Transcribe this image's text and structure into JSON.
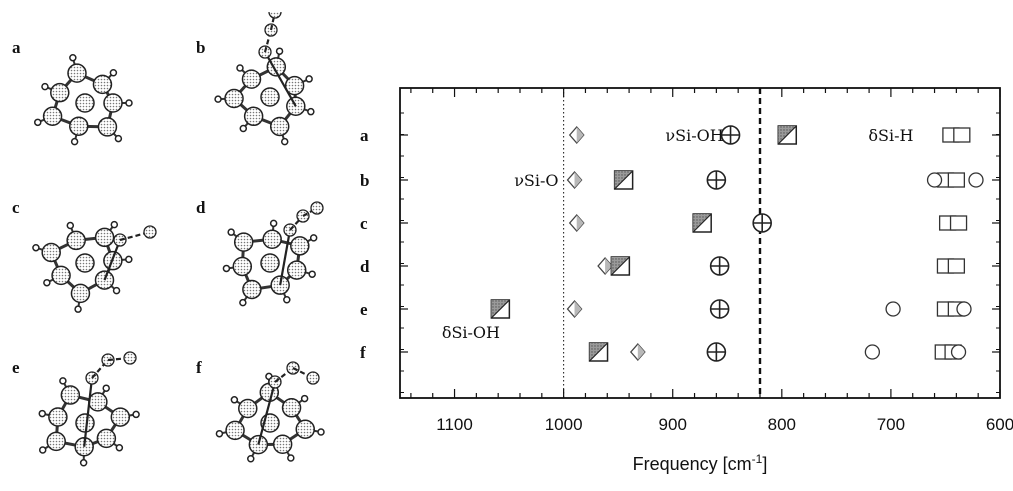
{
  "structures": {
    "labels": [
      "a",
      "b",
      "c",
      "d",
      "e",
      "f"
    ]
  },
  "chart_data": {
    "type": "scatter",
    "title": "",
    "xlabel": "Frequency [cm",
    "xlabel_superscript": "-1",
    "xlabel_suffix": "]",
    "ylabel": "",
    "xlim": [
      1150,
      600
    ],
    "x_reversed": true,
    "xticks": [
      1100,
      1000,
      900,
      800,
      700,
      600
    ],
    "categories": [
      "a",
      "b",
      "c",
      "d",
      "e",
      "f"
    ],
    "reference_lines": [
      {
        "x": 1000,
        "style": "dotted"
      },
      {
        "x": 820,
        "style": "dashed"
      }
    ],
    "annotations": [
      {
        "text": "νSi-OH",
        "x": 880,
        "row": "a"
      },
      {
        "text": "δSi-H",
        "x": 700,
        "row": "a"
      },
      {
        "text": "νSi-O",
        "x": 1025,
        "row": "b"
      },
      {
        "text": "δSi-OH",
        "x": 1085,
        "row": "f_upper"
      }
    ],
    "series": [
      {
        "marker": "diamond",
        "points": [
          {
            "row": "a",
            "x": 988
          },
          {
            "row": "b",
            "x": 990
          },
          {
            "row": "c",
            "x": 988
          },
          {
            "row": "d",
            "x": 962
          },
          {
            "row": "e",
            "x": 990
          },
          {
            "row": "f",
            "x": 932
          }
        ]
      },
      {
        "marker": "square-half",
        "points": [
          {
            "row": "a",
            "x": 795
          },
          {
            "row": "b",
            "x": 945
          },
          {
            "row": "c",
            "x": 873
          },
          {
            "row": "d",
            "x": 948
          },
          {
            "row": "e",
            "x": 1058
          },
          {
            "row": "f",
            "x": 968
          }
        ]
      },
      {
        "marker": "circle-plus",
        "points": [
          {
            "row": "a",
            "x": 847
          },
          {
            "row": "b",
            "x": 860
          },
          {
            "row": "c",
            "x": 818
          },
          {
            "row": "d",
            "x": 857
          },
          {
            "row": "e",
            "x": 857
          },
          {
            "row": "f",
            "x": 860
          }
        ]
      },
      {
        "marker": "square",
        "points": [
          {
            "row": "a",
            "x": 645
          },
          {
            "row": "a",
            "x": 635
          },
          {
            "row": "b",
            "x": 650
          },
          {
            "row": "b",
            "x": 640
          },
          {
            "row": "c",
            "x": 648
          },
          {
            "row": "c",
            "x": 638
          },
          {
            "row": "d",
            "x": 650
          },
          {
            "row": "d",
            "x": 640
          },
          {
            "row": "e",
            "x": 650
          },
          {
            "row": "e",
            "x": 640
          },
          {
            "row": "f",
            "x": 652
          },
          {
            "row": "f",
            "x": 643
          }
        ]
      },
      {
        "marker": "circle",
        "points": [
          {
            "row": "b",
            "x": 660
          },
          {
            "row": "b",
            "x": 622
          },
          {
            "row": "e",
            "x": 698
          },
          {
            "row": "e",
            "x": 633
          },
          {
            "row": "f",
            "x": 717
          },
          {
            "row": "f",
            "x": 638
          }
        ]
      }
    ]
  }
}
